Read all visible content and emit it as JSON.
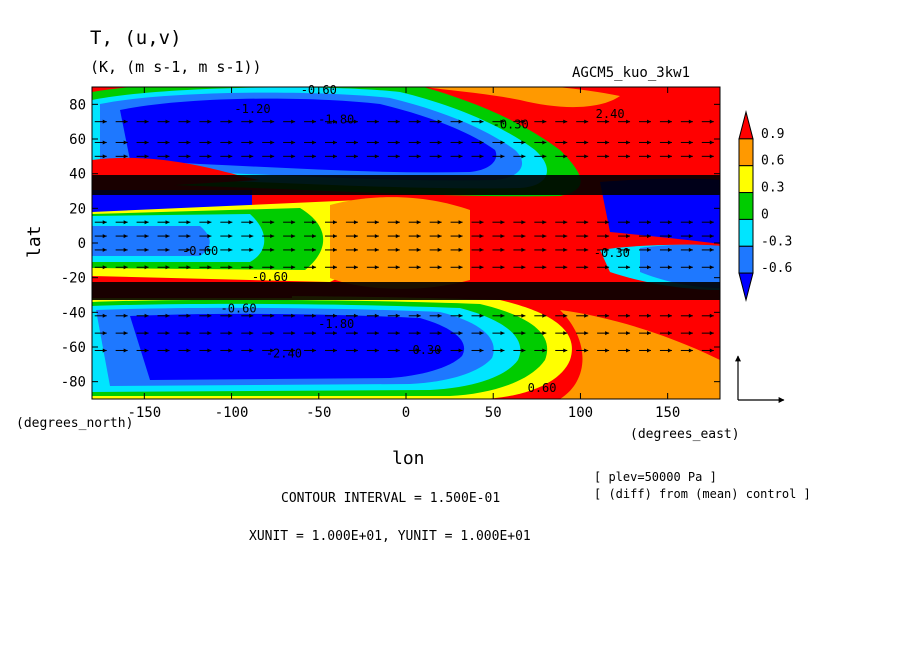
{
  "chart_data": {
    "type": "heatmap",
    "title": "T, (u,v)",
    "subtitle": "(K, (m s-1, m s-1))",
    "experiment": "AGCM5_kuo_3kw1",
    "xlabel": "lon",
    "ylabel": "lat",
    "x_unit_label": "(degrees_east)",
    "y_unit_label": "(degrees_north)",
    "xlim": [
      -180,
      180
    ],
    "ylim": [
      -90,
      90
    ],
    "x_ticks": [
      -150,
      -100,
      -50,
      0,
      50,
      100,
      150
    ],
    "y_ticks": [
      -80,
      -60,
      -40,
      -20,
      0,
      20,
      40,
      60,
      80
    ],
    "x_tick_labels": [
      "-150",
      "-100",
      "-50",
      "0",
      "50",
      "100",
      "150"
    ],
    "y_tick_labels": [
      "-80",
      "-60",
      "-40",
      "-20",
      "0",
      "20",
      "40",
      "60",
      "80"
    ],
    "colorbar": {
      "levels": [
        0.9,
        0.6,
        0.3,
        0,
        -0.3,
        -0.6
      ],
      "labels": [
        "0.9",
        "0.6",
        "0.3",
        "0",
        "-0.3",
        "-0.6"
      ],
      "colors": [
        "#ff0000",
        "#ff9900",
        "#ffff00",
        "#00cc00",
        "#00e5ff",
        "#1e78ff",
        "#0000ff"
      ]
    },
    "contour_labels": [
      {
        "text": "-0.60",
        "lon": -50,
        "lat": 86
      },
      {
        "text": "-1.20",
        "lon": -88,
        "lat": 75
      },
      {
        "text": "-1.80",
        "lon": -40,
        "lat": 69
      },
      {
        "text": "-0.30",
        "lon": 60,
        "lat": 66
      },
      {
        "text": "2.40",
        "lon": 117,
        "lat": 72
      },
      {
        "text": "-0.60",
        "lon": -118,
        "lat": -7
      },
      {
        "text": "-0.60",
        "lon": -78,
        "lat": -22
      },
      {
        "text": "-0.30",
        "lon": 118,
        "lat": -8
      },
      {
        "text": "-0.60",
        "lon": -96,
        "lat": -40
      },
      {
        "text": "-1.80",
        "lon": -40,
        "lat": -49
      },
      {
        "text": "-2.40",
        "lon": -70,
        "lat": -66
      },
      {
        "text": "0.30",
        "lon": 12,
        "lat": -64
      },
      {
        "text": "0.60",
        "lon": 78,
        "lat": -86
      }
    ],
    "contour_interval": "CONTOUR INTERVAL = 1.500E-01",
    "units_note": "XUNIT = 1.000E+01, YUNIT = 1.000E+01",
    "level_note": "[ plev=50000 Pa ]",
    "diff_note": "[ (diff) from (mean) control ]",
    "grid": false,
    "legend_position": "right"
  }
}
